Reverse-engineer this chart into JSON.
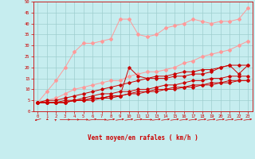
{
  "xlabel": "Vent moyen/en rafales ( km/h )",
  "xlim": [
    -0.5,
    23.5
  ],
  "ylim": [
    0,
    50
  ],
  "xticks": [
    0,
    1,
    2,
    3,
    4,
    5,
    6,
    7,
    8,
    9,
    10,
    11,
    12,
    13,
    14,
    15,
    16,
    17,
    18,
    19,
    20,
    21,
    22,
    23
  ],
  "yticks": [
    0,
    5,
    10,
    15,
    20,
    25,
    30,
    35,
    40,
    45,
    50
  ],
  "bg_color": "#c6edef",
  "grid_color": "#9ecece",
  "line_color_light": "#ff9999",
  "line_color_dark": "#cc0000",
  "series_light": [
    [
      4,
      9,
      14,
      20,
      27,
      31,
      31,
      32,
      33,
      42,
      42,
      35,
      34,
      35,
      38,
      39,
      40,
      42,
      41,
      40,
      41,
      41,
      42,
      47
    ],
    [
      4,
      5,
      6,
      8,
      10,
      11,
      12,
      13,
      14,
      14,
      16,
      17,
      18,
      18,
      19,
      20,
      22,
      23,
      25,
      26,
      27,
      28,
      30,
      32
    ]
  ],
  "series_dark": [
    [
      4,
      5,
      5,
      6,
      7,
      8,
      9,
      10,
      11,
      12,
      13,
      14,
      15,
      16,
      16,
      17,
      18,
      18,
      19,
      19,
      20,
      21,
      21,
      21
    ],
    [
      4,
      4,
      4,
      5,
      5,
      6,
      7,
      8,
      8,
      9,
      9,
      10,
      10,
      11,
      12,
      12,
      13,
      14,
      14,
      15,
      15,
      16,
      16,
      16
    ],
    [
      4,
      4,
      4,
      4,
      5,
      5,
      6,
      6,
      7,
      7,
      8,
      9,
      9,
      10,
      10,
      11,
      11,
      12,
      12,
      13,
      13,
      14,
      14,
      14
    ],
    [
      4,
      4,
      4,
      4,
      5,
      5,
      6,
      6,
      7,
      7,
      8,
      8,
      9,
      9,
      10,
      10,
      11,
      11,
      12,
      12,
      13,
      13,
      14,
      14
    ],
    [
      4,
      4,
      4,
      4,
      5,
      5,
      5,
      6,
      6,
      7,
      20,
      16,
      15,
      15,
      15,
      16,
      16,
      17,
      17,
      18,
      20,
      21,
      17,
      21
    ]
  ],
  "arrow_angles_deg": [
    225,
    200,
    20,
    90,
    90,
    90,
    60,
    90,
    60,
    60,
    60,
    60,
    90,
    60,
    60,
    60,
    60,
    60,
    60,
    60,
    60,
    60,
    60,
    60
  ]
}
